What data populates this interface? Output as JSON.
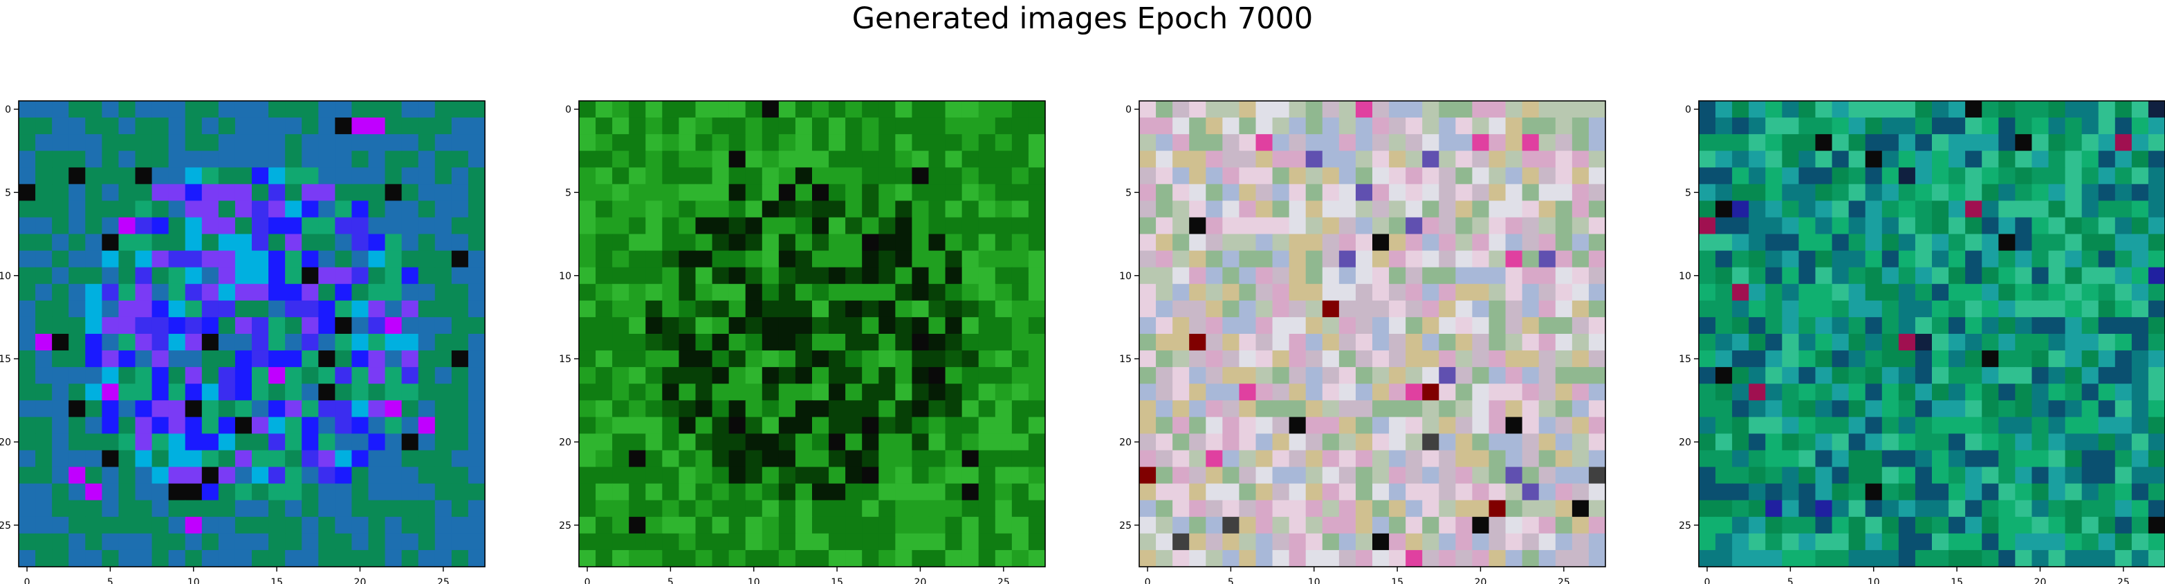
{
  "figure": {
    "title": "Generated images Epoch 7000"
  },
  "chart_data": [
    {
      "type": "heatmap",
      "panel": 1,
      "rendering": "28x28 RGB image",
      "dominant_colors": [
        "#0a8a55",
        "#1d6fb0",
        "#3b2df0",
        "#1a1aff",
        "#7a3bf5",
        "#11a870",
        "#00b0e0"
      ],
      "xticks": [
        0,
        5,
        10,
        15,
        20,
        25
      ],
      "yticks": [
        0,
        5,
        10,
        15,
        20,
        25
      ],
      "xlim": [
        -0.5,
        27.5
      ],
      "ylim": [
        27.5,
        -0.5
      ],
      "tick_labels": {
        "x": [
          "0",
          "5",
          "10",
          "15",
          "20",
          "25"
        ],
        "y": [
          "0",
          "5",
          "10",
          "15",
          "20",
          "25"
        ]
      }
    },
    {
      "type": "heatmap",
      "panel": 2,
      "rendering": "28x28 RGB image",
      "dominant_colors": [
        "#0f7d12",
        "#0a5a0a",
        "#064006",
        "#20a020",
        "#051c05",
        "#2fb52f"
      ],
      "xticks": [
        0,
        5,
        10,
        15,
        20,
        25
      ],
      "yticks": [
        0,
        5,
        10,
        15,
        20,
        25
      ],
      "xlim": [
        -0.5,
        27.5
      ],
      "ylim": [
        27.5,
        -0.5
      ],
      "tick_labels": {
        "x": [
          "0",
          "5",
          "10",
          "15",
          "20",
          "25"
        ],
        "y": [
          "0",
          "5",
          "10",
          "15",
          "20",
          "25"
        ]
      }
    },
    {
      "type": "heatmap",
      "panel": 3,
      "rendering": "28x28 RGB image",
      "dominant_colors": [
        "#c9b8c8",
        "#d8a8c8",
        "#b8c8b0",
        "#e8d0e0",
        "#a8b8d8",
        "#90b890",
        "#d0c090",
        "#e0e0e8"
      ],
      "xticks": [
        0,
        5,
        10,
        15,
        20,
        25
      ],
      "yticks": [
        0,
        5,
        10,
        15,
        20,
        25
      ],
      "xlim": [
        -0.5,
        27.5
      ],
      "ylim": [
        27.5,
        -0.5
      ],
      "tick_labels": {
        "x": [
          "0",
          "5",
          "10",
          "15",
          "20",
          "25"
        ],
        "y": [
          "0",
          "5",
          "10",
          "15",
          "20",
          "25"
        ]
      }
    },
    {
      "type": "heatmap",
      "panel": 4,
      "rendering": "28x28 RGB image",
      "dominant_colors": [
        "#0a9a60",
        "#068a50",
        "#10b070",
        "#0a7a80",
        "#1aa0a0",
        "#0a5070",
        "#30c090"
      ],
      "xticks": [
        0,
        5,
        10,
        15,
        20,
        25
      ],
      "yticks": [
        0,
        5,
        10,
        15,
        20,
        25
      ],
      "xlim": [
        -0.5,
        27.5
      ],
      "ylim": [
        27.5,
        -0.5
      ],
      "tick_labels": {
        "x": [
          "0",
          "5",
          "10",
          "15",
          "20",
          "25"
        ],
        "y": [
          "0",
          "5",
          "10",
          "15",
          "20",
          "25"
        ]
      }
    }
  ]
}
